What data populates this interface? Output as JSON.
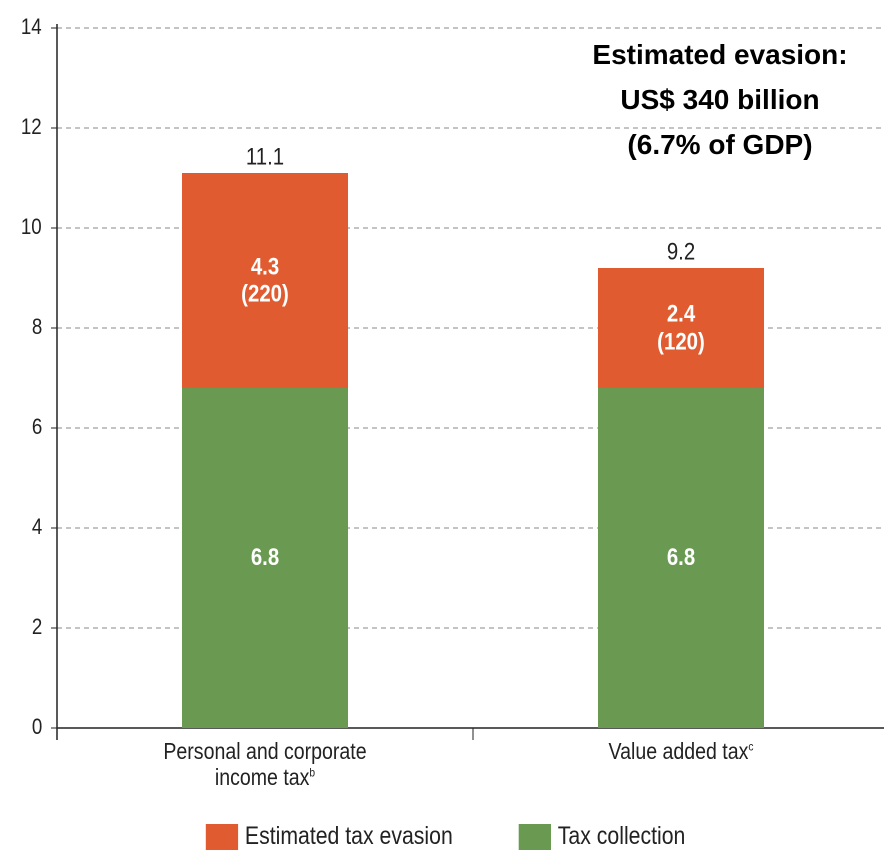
{
  "chart_data": {
    "type": "stacked_bar",
    "categories": [
      "Personal and corporate income tax",
      "Value added tax"
    ],
    "category_notes": [
      "b",
      "c"
    ],
    "series": [
      {
        "name": "Tax collection",
        "color": "#6a9a52",
        "values": [
          6.8,
          6.8
        ]
      },
      {
        "name": "Estimated tax evasion",
        "color": "#e05c30",
        "values": [
          4.3,
          2.4
        ],
        "value_labels": [
          "4.3\n(220)",
          "2.4\n(120)"
        ]
      }
    ],
    "totals": [
      11.1,
      9.2
    ],
    "annotation": [
      "Estimated evasion:",
      "US$ 340 billion",
      "(6.7% of GDP)"
    ],
    "ylim": [
      0,
      14
    ],
    "yticks": [
      0,
      2,
      4,
      6,
      8,
      10,
      12,
      14
    ],
    "grid": true,
    "legend": "bottom"
  }
}
